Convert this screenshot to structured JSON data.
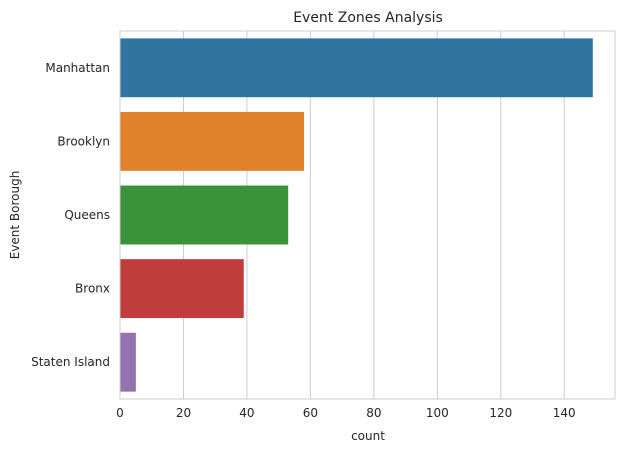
{
  "chart_data": {
    "type": "bar",
    "orientation": "horizontal",
    "title": "Event Zones Analysis",
    "xlabel": "count",
    "ylabel": "Event Borough",
    "categories": [
      "Manhattan",
      "Brooklyn",
      "Queens",
      "Bronx",
      "Staten Island"
    ],
    "values": [
      149,
      58,
      53,
      39,
      5
    ],
    "colors": [
      "#3274a1",
      "#e1812c",
      "#3a923a",
      "#c03d3e",
      "#9372b2"
    ],
    "xlim": [
      0,
      156
    ],
    "xticks": [
      0,
      20,
      40,
      60,
      80,
      100,
      120,
      140
    ],
    "grid": true,
    "legend": "none"
  }
}
